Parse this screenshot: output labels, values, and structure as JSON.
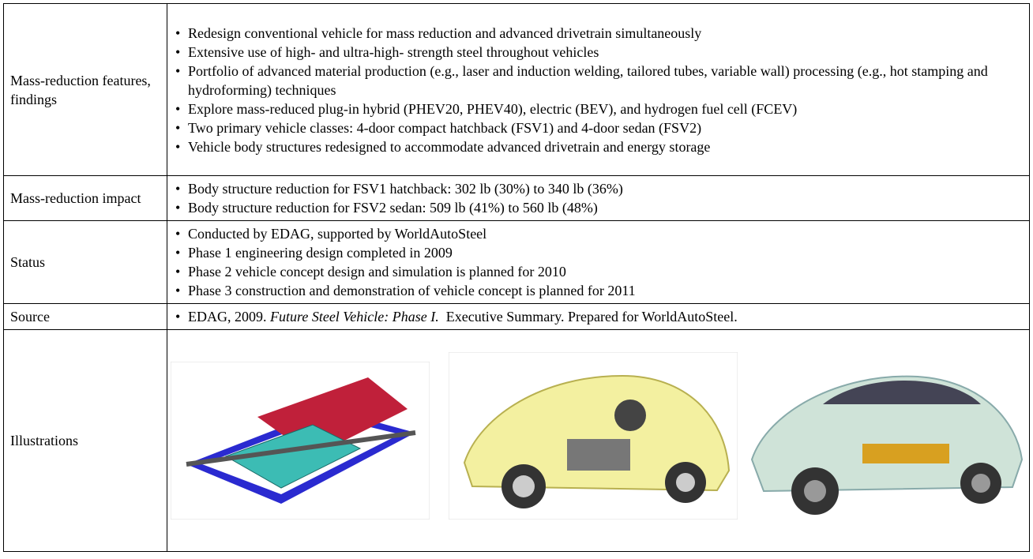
{
  "table": {
    "rows": [
      {
        "label": "Mass-reduction features, findings",
        "items": [
          "Redesign conventional vehicle for mass reduction and advanced drivetrain simultaneously",
          "Extensive use of high- and ultra-high- strength steel throughout vehicles",
          "Portfolio of advanced material production (e.g., laser and induction welding, tailored tubes, variable wall) processing (e.g., hot stamping and hydroforming) techniques",
          "Explore mass-reduced plug-in hybrid (PHEV20, PHEV40), electric (BEV), and hydrogen fuel cell (FCEV)",
          "Two primary vehicle classes: 4-door compact hatchback (FSV1) and 4-door sedan (FSV2)",
          "Vehicle body structures redesigned to accommodate advanced drivetrain and energy storage"
        ]
      },
      {
        "label": "Mass-reduction impact",
        "items": [
          "Body structure reduction for FSV1 hatchback: 302 lb (30%) to 340 lb (36%)",
          "Body structure reduction for FSV2 sedan: 509 lb (41%) to 560 lb (48%)"
        ]
      },
      {
        "label": "Status",
        "items": [
          "Conducted by EDAG, supported by WorldAutoSteel",
          "Phase 1 engineering design completed in 2009",
          "Phase 2 vehicle concept design and simulation is planned for 2010",
          "Phase 3 construction and demonstration of vehicle concept is planned for 2011"
        ]
      }
    ],
    "source": {
      "label": "Source",
      "before": "EDAG, 2009.",
      "title": "Future Steel Vehicle: Phase I.",
      "after": "Executive Summary. Prepared for WorldAutoSteel."
    },
    "illustrations": {
      "label": "Illustrations"
    }
  }
}
